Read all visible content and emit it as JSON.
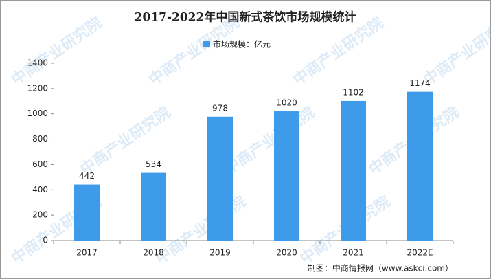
{
  "chart_data": {
    "type": "bar",
    "title": "2017-2022年中国新式茶饮市场规模统计",
    "categories": [
      "2017",
      "2018",
      "2019",
      "2020",
      "2021",
      "2022E"
    ],
    "series": [
      {
        "name": "市场规模：亿元",
        "color": "#3d9be9",
        "values": [
          442,
          534,
          978,
          1020,
          1102,
          1174
        ]
      }
    ],
    "ylim": [
      0,
      1400
    ],
    "yticks": [
      0,
      200,
      400,
      600,
      800,
      1000,
      1200,
      1400
    ],
    "grid": false,
    "legend": "top",
    "source": "制图：中商情报网（www.askci.com）",
    "watermark": "中商产业研究院"
  }
}
